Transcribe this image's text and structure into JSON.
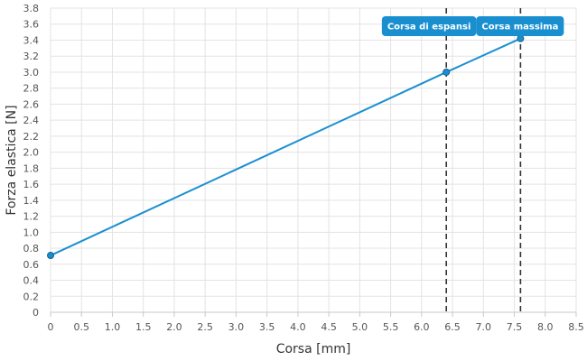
{
  "chart_data": {
    "type": "line",
    "title": "",
    "xlabel": "Corsa [mm]",
    "ylabel": "Forza elastica [N]",
    "xlim": [
      0,
      8.5
    ],
    "ylim": [
      0,
      3.8
    ],
    "x_ticks": [
      "0",
      "0.5",
      "1.0",
      "1.5",
      "2.0",
      "2.5",
      "3.0",
      "3.5",
      "4.0",
      "4.5",
      "5.0",
      "5.5",
      "6.0",
      "6.5",
      "7.0",
      "7.5",
      "8.0",
      "8.5"
    ],
    "y_ticks": [
      "0",
      "0.2",
      "0.4",
      "0.6",
      "0.8",
      "1.0",
      "1.2",
      "1.4",
      "1.6",
      "1.8",
      "2.0",
      "2.2",
      "2.4",
      "2.6",
      "2.8",
      "3.0",
      "3.2",
      "3.4",
      "3.6",
      "3.8"
    ],
    "grid": true,
    "series": [
      {
        "color": "#1a8fd0",
        "points": [
          {
            "x": 0,
            "y": 0.71
          },
          {
            "x": 6.4,
            "y": 3.0
          },
          {
            "x": 7.6,
            "y": 3.42
          }
        ]
      }
    ],
    "markers": [
      {
        "x": 6.4,
        "label": "Corsa di espansi"
      },
      {
        "x": 7.6,
        "label": "Corsa massima"
      }
    ],
    "callout_color": "#1a8fd0"
  }
}
